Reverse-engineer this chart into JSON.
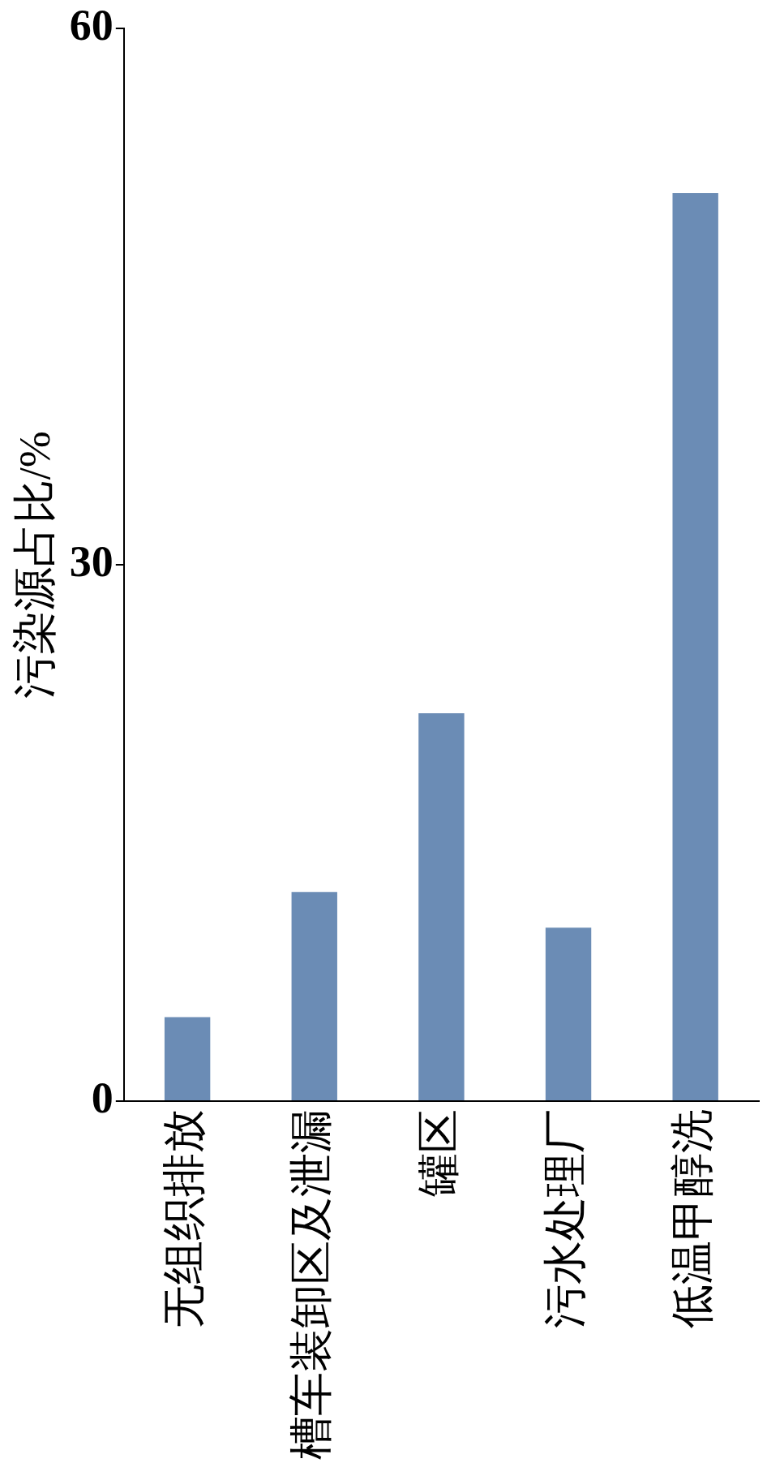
{
  "chart_data": {
    "type": "bar",
    "ylabel": "污染源占比/%",
    "categories": [
      "无组织排放",
      "槽车装卸区及泄漏",
      "罐区",
      "污水处理厂",
      "低温甲醇洗"
    ],
    "values": [
      4.7,
      11.7,
      21.7,
      9.7,
      50.8
    ],
    "color": "#6b8cb5",
    "ylim": [
      0,
      60
    ],
    "yticks": [
      0,
      30,
      60
    ],
    "grid": false,
    "legend": false
  }
}
